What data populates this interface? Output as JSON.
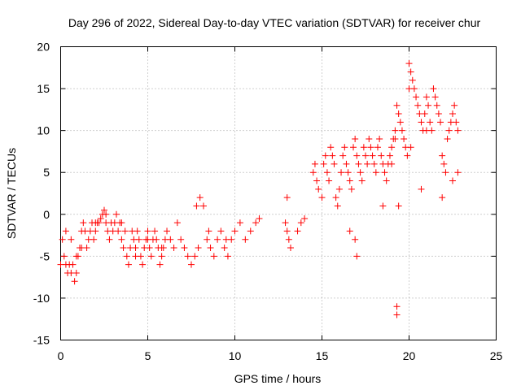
{
  "chart_data": {
    "type": "scatter",
    "title": "Day 296 of 2022, Sidereal Day-to-day VTEC variation (SDTVAR) for receiver chur",
    "xlabel": "GPS time / hours",
    "ylabel": "SDTVAR / TECUs",
    "xlim": [
      0,
      25
    ],
    "ylim": [
      -15,
      20
    ],
    "xticks": [
      0,
      5,
      10,
      15,
      20,
      25
    ],
    "yticks": [
      -15,
      -10,
      -5,
      0,
      5,
      10,
      15,
      20
    ],
    "grid": true,
    "marker": "+",
    "series": [
      {
        "name": "SDTVAR",
        "color": "#ff0000",
        "x": [
          0.0,
          0.1,
          0.2,
          0.3,
          0.4,
          0.5,
          0.6,
          0.7,
          0.8,
          0.9,
          1.0,
          1.1,
          1.2,
          1.3,
          1.4,
          1.5,
          1.6,
          1.7,
          1.8,
          1.9,
          2.0,
          2.1,
          2.2,
          2.3,
          2.4,
          2.5,
          2.6,
          2.7,
          2.8,
          2.9,
          3.0,
          3.1,
          3.2,
          3.3,
          3.4,
          3.5,
          3.6,
          3.7,
          3.8,
          3.9,
          4.0,
          4.1,
          4.2,
          4.3,
          4.4,
          4.5,
          4.6,
          4.7,
          4.8,
          4.9,
          5.0,
          5.1,
          5.2,
          5.3,
          5.4,
          5.5,
          5.6,
          5.7,
          5.8,
          5.9,
          6.0,
          6.1,
          6.3,
          6.5,
          6.7,
          6.9,
          7.1,
          7.3,
          7.5,
          7.7,
          7.9,
          8.0,
          8.2,
          8.4,
          8.6,
          8.8,
          9.0,
          9.2,
          9.4,
          9.6,
          9.8,
          10.0,
          10.3,
          10.6,
          10.9,
          11.2,
          11.4,
          12.9,
          13.0,
          13.1,
          13.2,
          13.6,
          13.8,
          14.0,
          14.5,
          14.6,
          14.7,
          14.8,
          15.0,
          15.1,
          15.2,
          15.3,
          15.4,
          15.5,
          15.6,
          15.7,
          15.8,
          15.9,
          16.0,
          16.1,
          16.2,
          16.3,
          16.4,
          16.5,
          16.6,
          16.7,
          16.8,
          16.9,
          17.0,
          17.1,
          17.2,
          17.3,
          17.4,
          17.5,
          17.6,
          17.7,
          17.8,
          17.9,
          18.0,
          18.1,
          18.2,
          18.3,
          18.4,
          18.5,
          18.6,
          18.7,
          18.8,
          18.9,
          19.0,
          19.1,
          19.2,
          19.3,
          19.4,
          19.5,
          19.6,
          19.7,
          19.8,
          19.9,
          20.0,
          20.1,
          20.2,
          20.3,
          20.4,
          20.5,
          20.6,
          20.7,
          20.8,
          20.9,
          21.0,
          21.1,
          21.2,
          21.3,
          21.4,
          21.5,
          21.6,
          21.7,
          21.8,
          21.9,
          22.0,
          22.1,
          22.2,
          22.3,
          22.4,
          22.5,
          22.6,
          22.7,
          22.8,
          0.3,
          0.6,
          0.9,
          1.2,
          2.0,
          2.6,
          3.5,
          4.3,
          5.0,
          5.8,
          7.8,
          8.5,
          9.5,
          13.0,
          16.6,
          16.9,
          17.0,
          19.3,
          19.3,
          19.4,
          19.2,
          20.1,
          20.0,
          21.9,
          22.5,
          22.8,
          21.0,
          20.7,
          18.5,
          19.0
        ],
        "y": [
          -6,
          -3,
          -5,
          -2,
          -7,
          -6,
          -3,
          -6,
          -8,
          -7,
          -5,
          -4,
          -2,
          -1,
          -2,
          -4,
          -3,
          -2,
          -1,
          -3,
          -2,
          -1,
          -1,
          -0.5,
          0,
          0.5,
          -1,
          -2,
          -3,
          -1,
          -2,
          -1,
          0,
          -2,
          -1,
          -3,
          -4,
          -2,
          -5,
          -6,
          -4,
          -2,
          -3,
          -4,
          -2,
          -3,
          -5,
          -6,
          -4,
          -3,
          -2,
          -4,
          -5,
          -3,
          -2,
          -3,
          -4,
          -6,
          -5,
          -4,
          -3,
          -2,
          -3,
          -4,
          -1,
          -3,
          -4,
          -5,
          -6,
          -5,
          -4,
          2,
          1,
          -3,
          -4,
          -5,
          -3,
          -2,
          -4,
          -5,
          -3,
          -2,
          -1,
          -3,
          -2,
          -1,
          -0.5,
          -1,
          -2,
          -3,
          -4,
          -2,
          -1,
          -0.5,
          5,
          6,
          4,
          3,
          2,
          6,
          7,
          5,
          4,
          8,
          7,
          6,
          2,
          1,
          3,
          5,
          7,
          8,
          6,
          5,
          4,
          3,
          8,
          9,
          7,
          6,
          5,
          4,
          8,
          7,
          6,
          9,
          8,
          7,
          6,
          5,
          8,
          9,
          7,
          6,
          5,
          4,
          6,
          7,
          8,
          9,
          10,
          13,
          12,
          11,
          10,
          9,
          8,
          7,
          18,
          17,
          16,
          15,
          14,
          13,
          12,
          11,
          10,
          12,
          14,
          13,
          11,
          10,
          15,
          14,
          13,
          12,
          11,
          7,
          6,
          5,
          9,
          10,
          11,
          12,
          13,
          11,
          10,
          -6,
          -7,
          -5,
          -4,
          -1,
          0,
          -1,
          -5,
          -3,
          -4,
          1,
          -2,
          -3,
          2,
          -2,
          -3,
          -5,
          -11,
          -12,
          1,
          9,
          8,
          15,
          2,
          4,
          5,
          10,
          3,
          1,
          6
        ]
      }
    ]
  }
}
